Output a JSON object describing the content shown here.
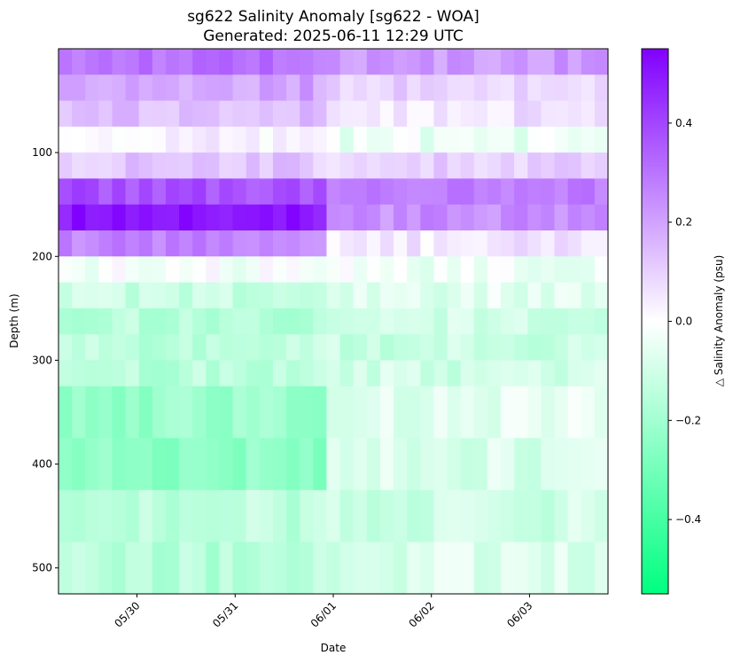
{
  "chart_data": {
    "type": "heatmap",
    "title": "sg622 Salinity Anomaly [sg622 - WOA]",
    "subtitle": "Generated: 2025-06-11 12:29 UTC",
    "xlabel": "Date",
    "ylabel": "Depth (m)",
    "colorbar_label": "△ Salinity Anomaly (psu)",
    "x_tick_labels": [
      "05/30",
      "05/31",
      "06/01",
      "06/02",
      "06/03"
    ],
    "x_tick_dates": [
      "2025-05-30",
      "2025-05-31",
      "2025-06-01",
      "2025-06-02",
      "2025-06-03"
    ],
    "x_range": [
      "2025-05-29 04:48",
      "2025-06-03 19:12"
    ],
    "y_ticks": [
      100,
      200,
      300,
      400,
      500
    ],
    "y_range": [
      0,
      525
    ],
    "y_inverted": true,
    "colorbar_ticks": [
      0.4,
      0.2,
      0.0,
      -0.2,
      -0.4
    ],
    "colorbar_tick_labels": [
      "0.4",
      "0.2",
      "0.0",
      "−0.2",
      "−0.4"
    ],
    "color_range": [
      -0.55,
      0.55
    ],
    "colormap": {
      "negative": "#00ff80",
      "zero": "#ffffff",
      "positive": "#8000ff"
    },
    "depth_bands": [
      {
        "depth": [
          0,
          25
        ],
        "before_0601": 0.3,
        "after_0601": 0.22
      },
      {
        "depth": [
          25,
          50
        ],
        "before_0601": 0.2,
        "after_0601": 0.1
      },
      {
        "depth": [
          50,
          75
        ],
        "before_0601": 0.15,
        "after_0601": 0.06
      },
      {
        "depth": [
          75,
          100
        ],
        "before_0601": 0.03,
        "after_0601": -0.04
      },
      {
        "depth": [
          100,
          125
        ],
        "before_0601": 0.12,
        "after_0601": 0.1
      },
      {
        "depth": [
          125,
          150
        ],
        "before_0601": 0.38,
        "after_0601": 0.28
      },
      {
        "depth": [
          150,
          175
        ],
        "before_0601": 0.5,
        "after_0601": 0.24
      },
      {
        "depth": [
          175,
          200
        ],
        "before_0601": 0.26,
        "after_0601": 0.05
      },
      {
        "depth": [
          200,
          225
        ],
        "before_0601": -0.02,
        "after_0601": -0.03
      },
      {
        "depth": [
          225,
          250
        ],
        "before_0601": -0.12,
        "after_0601": -0.06
      },
      {
        "depth": [
          250,
          275
        ],
        "before_0601": -0.16,
        "after_0601": -0.1
      },
      {
        "depth": [
          275,
          300
        ],
        "before_0601": -0.14,
        "after_0601": -0.12
      },
      {
        "depth": [
          300,
          325
        ],
        "before_0601": -0.15,
        "after_0601": -0.1
      },
      {
        "depth": [
          325,
          375
        ],
        "before_0601": -0.22,
        "after_0601": -0.06
      },
      {
        "depth": [
          375,
          425
        ],
        "before_0601": -0.24,
        "after_0601": -0.08
      },
      {
        "depth": [
          425,
          475
        ],
        "before_0601": -0.14,
        "after_0601": -0.1
      },
      {
        "depth": [
          475,
          525
        ],
        "before_0601": -0.16,
        "after_0601": -0.08
      }
    ]
  }
}
